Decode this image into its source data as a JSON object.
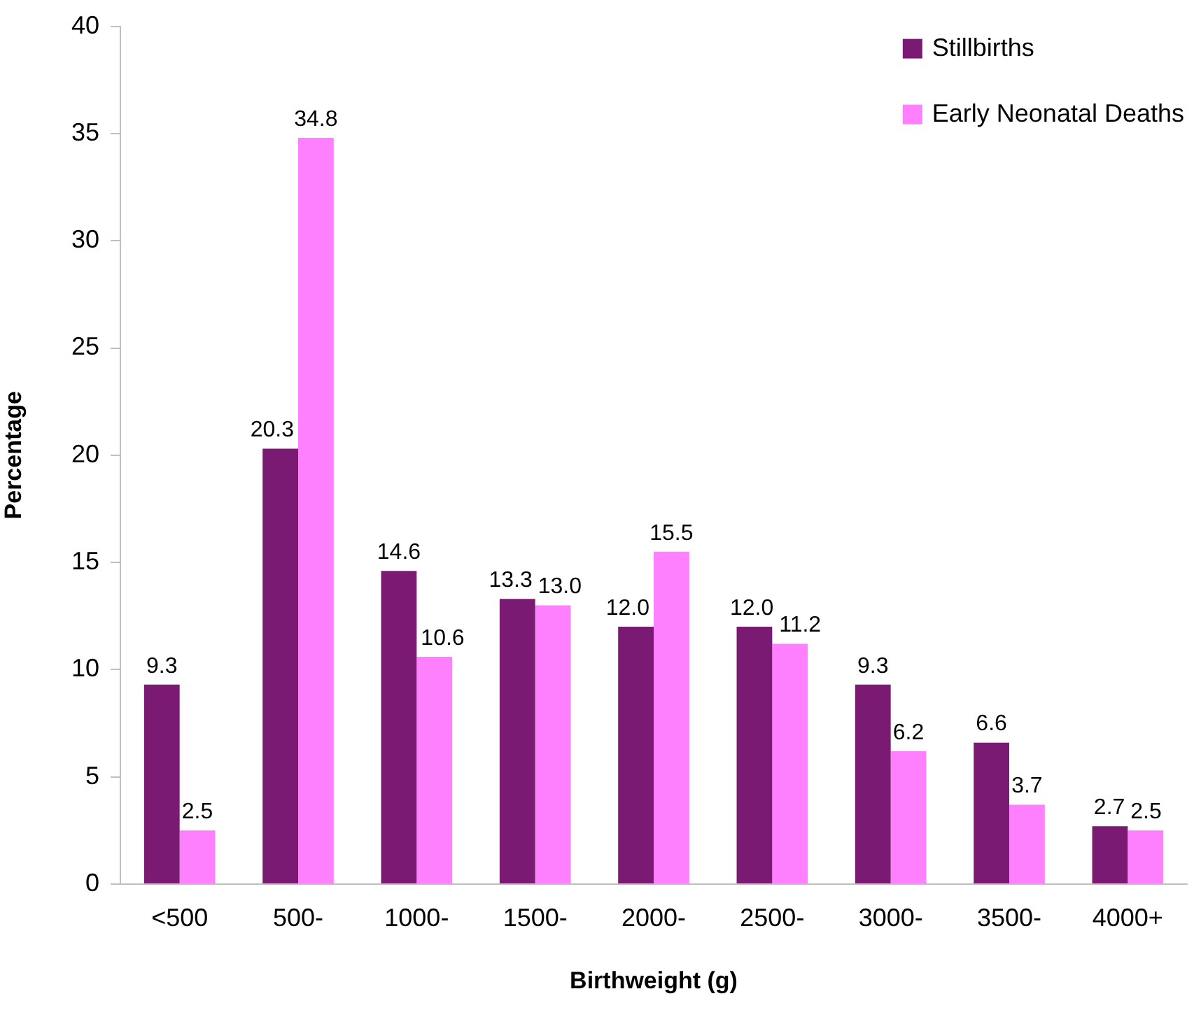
{
  "chart_data": {
    "type": "bar",
    "xlabel": "Birthweight (g)",
    "ylabel": "Percentage",
    "categories": [
      "<500",
      "500-",
      "1000-",
      "1500-",
      "2000-",
      "2500-",
      "3000-",
      "3500-",
      "4000+"
    ],
    "series": [
      {
        "name": "Stillbirths",
        "color": "#7a1a72",
        "values": [
          9.3,
          20.3,
          14.6,
          13.3,
          12.0,
          12.0,
          9.3,
          6.6,
          2.7
        ],
        "value_labels": [
          "9.3",
          "20.3",
          "14.6",
          "13.3",
          "12.0",
          "12.0",
          "9.3",
          "6.6",
          "2.7"
        ]
      },
      {
        "name": "Early Neonatal Deaths",
        "color": "#ff80ff",
        "values": [
          2.5,
          34.8,
          10.6,
          13.0,
          15.5,
          11.2,
          6.2,
          3.7,
          2.5
        ],
        "value_labels": [
          "2.5",
          "34.8",
          "10.6",
          "13.0",
          "15.5",
          "11.2",
          "6.2",
          "3.7",
          "2.5"
        ]
      }
    ],
    "ylim": [
      0,
      40
    ],
    "yticks": [
      0,
      5,
      10,
      15,
      20,
      25,
      30,
      35,
      40
    ],
    "grid": false,
    "legend": "top right"
  }
}
